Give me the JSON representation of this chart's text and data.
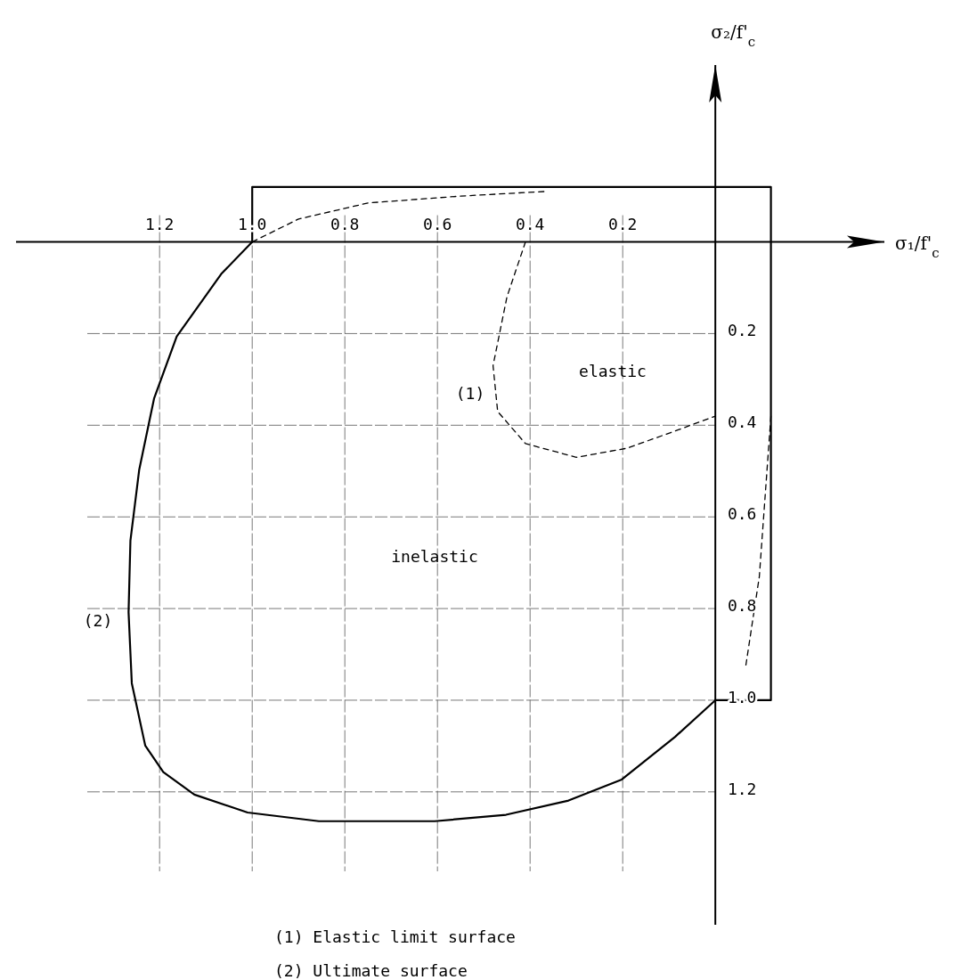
{
  "chart_data": {
    "type": "line",
    "xlabel": "σ₁/f'$_{c}$",
    "ylabel": "σ₂/f'$_{c}$",
    "xlim": [
      1.51,
      -0.365
    ],
    "ylim": [
      1.49,
      -0.386
    ],
    "xticks": [
      1.2,
      {
        "value": 1.0,
        "label": "1.0"
      },
      0.8,
      0.6,
      0.4,
      0.2
    ],
    "yticks": [
      0.2,
      0.4,
      0.6,
      0.8,
      {
        "value": 1.0,
        "label": "1.0"
      },
      1.2
    ],
    "grid": true,
    "marker": "none",
    "series": [
      {
        "color": "#000000",
        "line_style": "dashed",
        "x": [
          1.0,
          0.9,
          0.75,
          0.55,
          0.37,
          null,
          0.41,
          0.45,
          0.48,
          0.47,
          0.41,
          0.3,
          0.19,
          0.08,
          0.0,
          null,
          -0.12,
          -0.095,
          -0.065
        ],
        "values": [
          0,
          -0.05,
          -0.085,
          -0.1,
          -0.11,
          null,
          0,
          0.12,
          0.27,
          0.37,
          0.44,
          0.47,
          0.45,
          0.41,
          0.38,
          null,
          0.38,
          0.73,
          0.93
        ]
      },
      {
        "color": "#000000",
        "line_style": "solid",
        "x": [
          1.0,
          1.067,
          1.163,
          1.212,
          1.244,
          1.263,
          1.267,
          1.26,
          1.231,
          1.192,
          1.125,
          1.01,
          0.856,
          0.606,
          0.452,
          0.317,
          0.202,
          0.087,
          0.0
        ],
        "values": [
          0,
          0.07,
          0.206,
          0.342,
          0.497,
          0.652,
          0.808,
          0.963,
          1.099,
          1.157,
          1.206,
          1.245,
          1.264,
          1.264,
          1.25,
          1.219,
          1.173,
          1.08,
          1.0
        ]
      },
      {
        "color": "#000000",
        "line_style": "solid",
        "x": [
          1.0,
          1.0,
          -0.12,
          -0.12,
          0.0
        ],
        "values": [
          0,
          -0.12,
          -0.12,
          1.0,
          1.0
        ]
      }
    ],
    "annotations": [
      "(1)",
      "(2)",
      "elastic",
      "inelastic",
      "(1) Elastic limit surface",
      "(2) Ultimate surface"
    ]
  }
}
